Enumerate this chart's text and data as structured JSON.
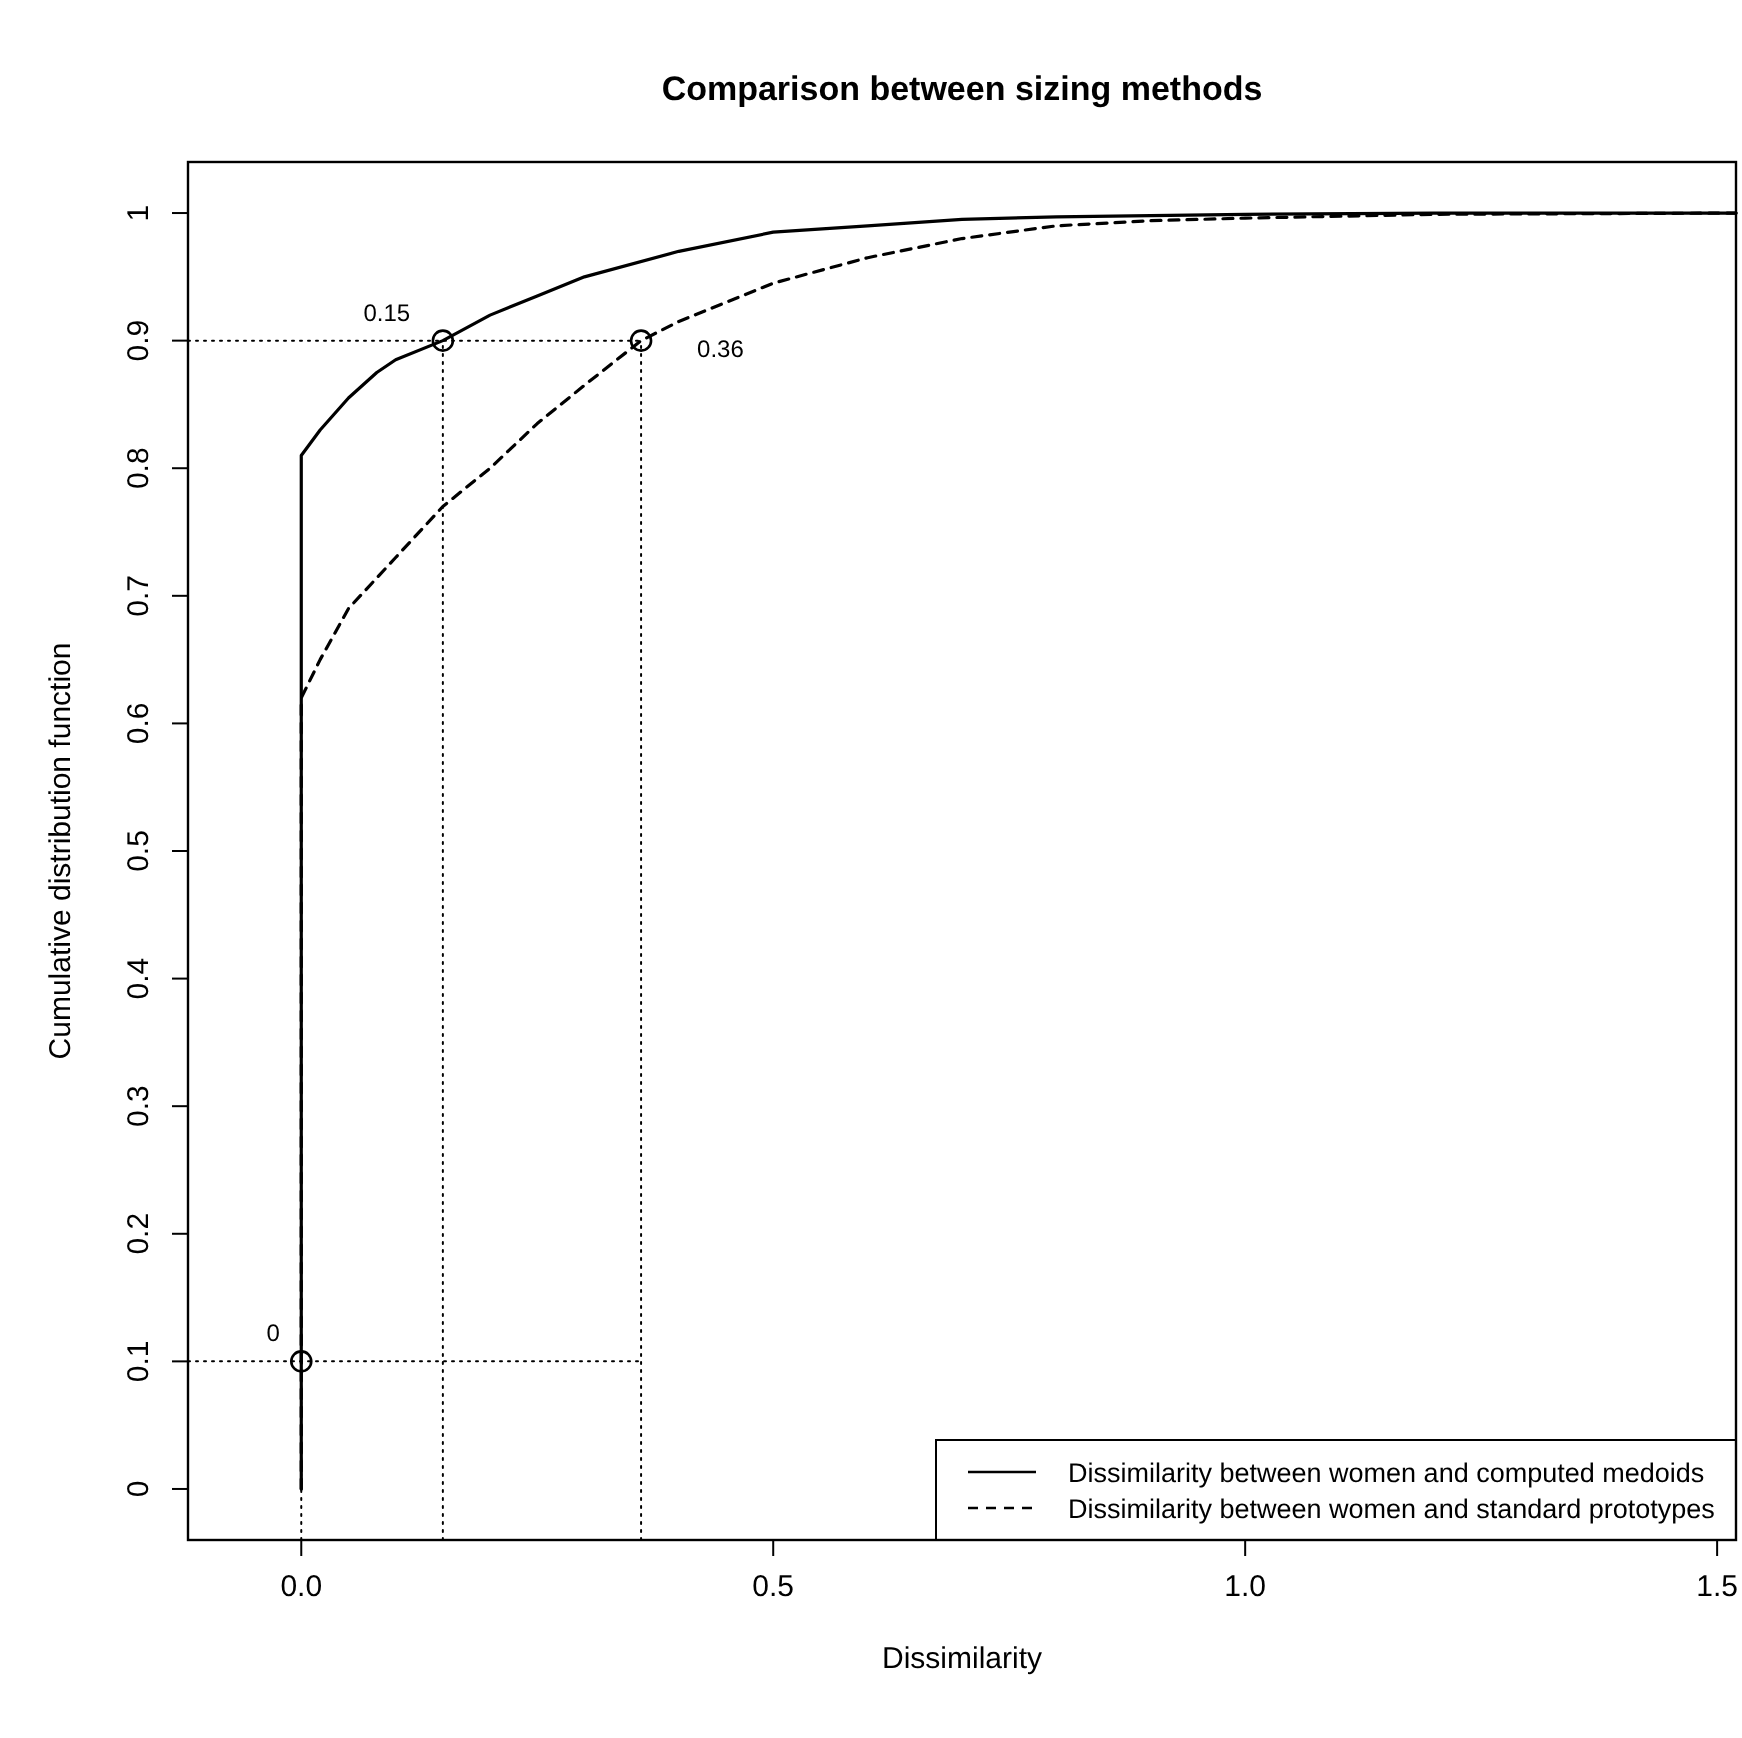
{
  "chart_data": {
    "type": "line",
    "title": "Comparison between sizing methods",
    "xlabel": "Dissimilarity",
    "ylabel": "Cumulative distribution function",
    "xlim": [
      -0.12,
      1.52
    ],
    "ylim": [
      -0.04,
      1.04
    ],
    "xticks": [
      {
        "value": 0,
        "label": "0.0"
      },
      {
        "value": 0.5,
        "label": "0.5"
      },
      {
        "value": 1,
        "label": "1.0"
      },
      {
        "value": 1.5,
        "label": "1.5"
      }
    ],
    "yticks": [
      0,
      0.1,
      0.2,
      0.3,
      0.4,
      0.5,
      0.6,
      0.7,
      0.8,
      0.9,
      1
    ],
    "grid": false,
    "legend": "bottom right",
    "series": [
      {
        "name": "Dissimilarity between women and computed medoids",
        "color": "#000000",
        "line_style": "solid",
        "x": [
          0,
          0,
          0.02,
          0.05,
          0.08,
          0.1,
          0.15,
          0.2,
          0.25,
          0.3,
          0.4,
          0.5,
          0.6,
          0.7,
          0.8,
          1.0,
          1.2,
          1.52
        ],
        "values": [
          0,
          0.81,
          0.83,
          0.855,
          0.875,
          0.885,
          0.9,
          0.92,
          0.935,
          0.95,
          0.97,
          0.985,
          0.99,
          0.995,
          0.997,
          0.999,
          1.0,
          1.0
        ]
      },
      {
        "name": "Dissimilarity between women and standard prototypes",
        "color": "#000000",
        "line_style": "dashed",
        "x": [
          0,
          0,
          0.02,
          0.05,
          0.1,
          0.15,
          0.2,
          0.25,
          0.3,
          0.36,
          0.4,
          0.5,
          0.6,
          0.7,
          0.8,
          0.9,
          1.0,
          1.2,
          1.52
        ],
        "values": [
          0,
          0.62,
          0.65,
          0.69,
          0.73,
          0.77,
          0.8,
          0.835,
          0.865,
          0.9,
          0.915,
          0.945,
          0.965,
          0.98,
          0.99,
          0.994,
          0.996,
          0.999,
          1.0
        ]
      },
      {
        "color": "#000000",
        "line_style": "dotted",
        "x": [
          -0.12,
          0.36
        ],
        "values": [
          0.1,
          0.1
        ]
      },
      {
        "color": "#000000",
        "line_style": "dotted",
        "x": [
          -0.12,
          0.36
        ],
        "values": [
          0.9,
          0.9
        ]
      },
      {
        "color": "#000000",
        "line_style": "dotted",
        "x": [
          0,
          0
        ],
        "values": [
          -0.04,
          0.1
        ]
      },
      {
        "color": "#000000",
        "line_style": "dotted",
        "x": [
          0.15,
          0.15
        ],
        "values": [
          -0.04,
          0.9
        ]
      },
      {
        "color": "#000000",
        "line_style": "dotted",
        "x": [
          0.36,
          0.36
        ],
        "values": [
          -0.04,
          0.9
        ]
      },
      {
        "type": "scatter",
        "color": "#000000",
        "marker": "circle",
        "x": [
          0,
          0.15,
          0.36
        ],
        "values": [
          0.1,
          0.9,
          0.9
        ]
      }
    ],
    "annotations": [
      {
        "text": "0",
        "x": 0,
        "y": 0.1
      },
      {
        "text": "0.15",
        "x": 0.15,
        "y": 0.9
      },
      {
        "text": "0.36",
        "x": 0.36,
        "y": 0.9
      }
    ]
  }
}
